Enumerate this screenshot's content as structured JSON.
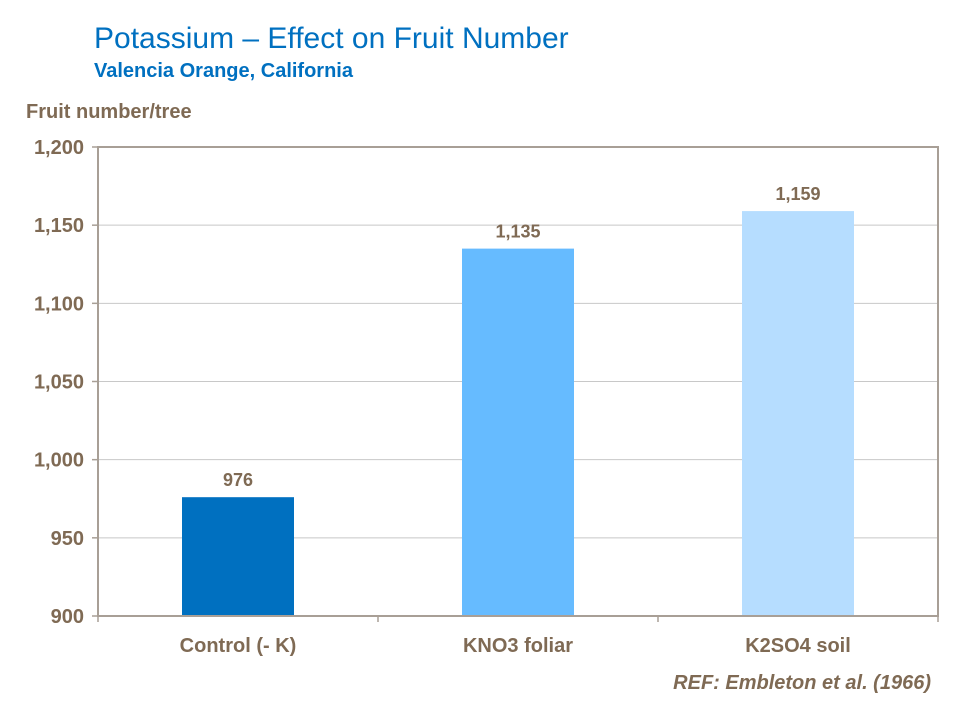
{
  "chart_data": {
    "type": "bar",
    "title": "Potassium – Effect on Fruit Number",
    "subtitle": "Valencia Orange, California",
    "ylabel": "Fruit number/tree",
    "xlabel": "",
    "categories": [
      "Control (- K)",
      "KNO3 foliar",
      "K2SO4 soil"
    ],
    "values": [
      976,
      1135,
      1159
    ],
    "data_labels": [
      "976",
      "1,135",
      "1,159"
    ],
    "bar_colors": [
      "#0070C0",
      "#66BBFF",
      "#B6DDFF"
    ],
    "ylim": [
      900,
      1200
    ],
    "yticks": [
      900,
      950,
      1000,
      1050,
      1100,
      1150,
      1200
    ],
    "ytick_labels": [
      "900",
      "950",
      "1,000",
      "1,050",
      "1,100",
      "1,150",
      "1,200"
    ],
    "grid": true,
    "legend": "none",
    "text_color": "#7F6A54",
    "title_color": "#0070C0"
  },
  "reference": "REF: Embleton et al. (1966)"
}
